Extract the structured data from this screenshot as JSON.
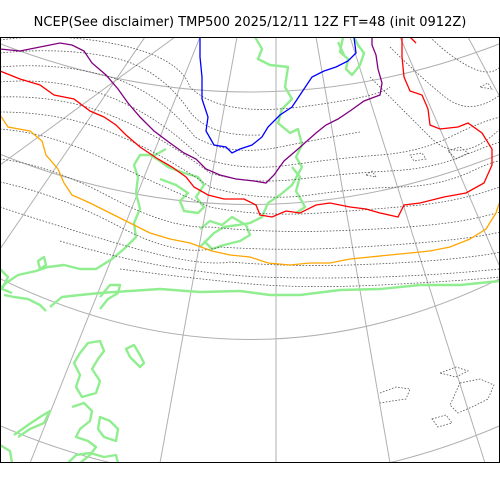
{
  "map": {
    "title": "NCEP(See disclaimer) TMP500 2025/12/11 12Z FT=48 (init 0912Z)",
    "projection": "polar-stereographic",
    "colors": {
      "graticule": "#b0b0b0",
      "coastline": "#90ee90",
      "isotherm_dotted": "#555555",
      "contour_orange": "#ffa500",
      "contour_red": "#ff0000",
      "contour_purple": "#800080",
      "contour_blue": "#0000ff",
      "border": "#000000"
    }
  }
}
